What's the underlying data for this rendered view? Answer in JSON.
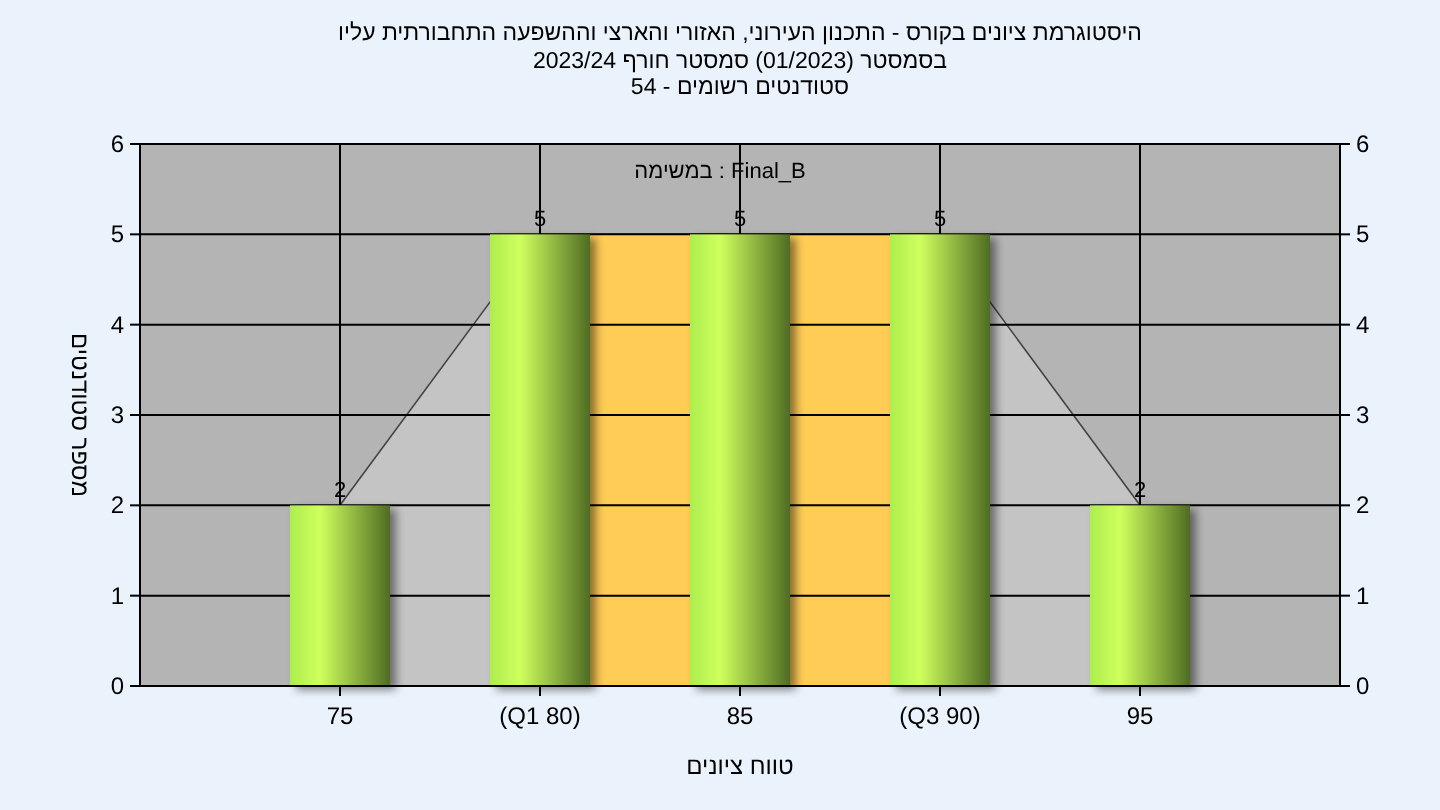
{
  "chart_data": {
    "type": "bar",
    "title": "היסטוגרמת ציונים בקורס - התכנון העירוני, האזורי והארצי וההשפעה התחבורתית עליו",
    "subtitle": "בסמסטר  (01/2023)  סמסטר חורף  2023/24\nסטודנטים רשומים - 54",
    "xlabel": "טווח ציונים",
    "ylabel": "מספר סטודנטים",
    "annotations": [
      "במשימה : Final_B"
    ],
    "x": [
      75,
      80,
      85,
      90,
      95
    ],
    "series": [
      {
        "color": "#8cbf3f",
        "values": [
          2,
          5,
          5,
          5,
          2
        ],
        "value_labels": [
          "2",
          "5",
          "5",
          "5",
          "2"
        ]
      },
      {
        "type": "area",
        "color": "#c4c4c4",
        "values": [
          2,
          5,
          5,
          5,
          2
        ]
      }
    ],
    "xlim": [
      70,
      100
    ],
    "xticks": [
      75,
      {
        "value": 80,
        "label": "(Q1 80)"
      },
      85,
      {
        "value": 90,
        "label": "(Q3 90)"
      },
      95
    ],
    "ylim": [
      0,
      6
    ],
    "yticks": [
      0,
      1,
      2,
      3,
      4,
      5,
      6
    ],
    "y2lim": [
      0,
      6
    ],
    "y2ticks": [
      0,
      1,
      2,
      3,
      4,
      5,
      6
    ],
    "bands": [
      {
        "axis": "x",
        "from": 80,
        "to": 90,
        "color": "#ffcc55"
      }
    ],
    "grid": true
  }
}
